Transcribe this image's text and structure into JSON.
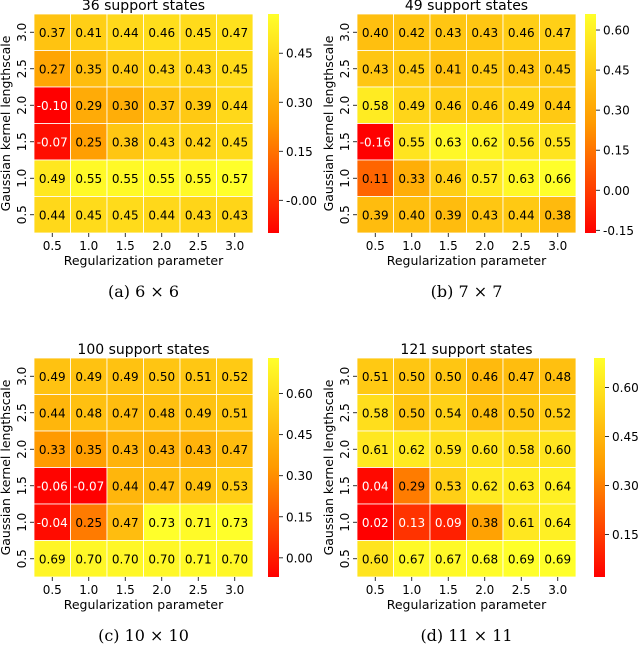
{
  "colors": {
    "low": "#ff0000",
    "mid": "#ff9a00",
    "high": "#ffff2a",
    "text_dark": "#000000",
    "text_light": "#ffffff"
  },
  "chart_data": [
    {
      "type": "heatmap",
      "title": "36 support states",
      "caption": "(a) 6 × 6",
      "xlabel": "Regularization parameter",
      "ylabel": "Gaussian kernel lengthscale",
      "x": [
        "0.5",
        "1.0",
        "1.5",
        "2.0",
        "2.5",
        "3.0"
      ],
      "y": [
        "3.0",
        "2.5",
        "2.0",
        "1.5",
        "1.0",
        "0.5"
      ],
      "values": [
        [
          0.37,
          0.41,
          0.44,
          0.46,
          0.45,
          0.47
        ],
        [
          0.27,
          0.35,
          0.4,
          0.43,
          0.43,
          0.45
        ],
        [
          -0.1,
          0.29,
          0.3,
          0.37,
          0.39,
          0.44
        ],
        [
          -0.07,
          0.25,
          0.38,
          0.43,
          0.42,
          0.45
        ],
        [
          0.49,
          0.55,
          0.55,
          0.55,
          0.55,
          0.57
        ],
        [
          0.44,
          0.45,
          0.45,
          0.44,
          0.43,
          0.43
        ]
      ],
      "labels": [
        [
          "0.37",
          "0.41",
          "0.44",
          "0.46",
          "0.45",
          "0.47"
        ],
        [
          "0.27",
          "0.35",
          "0.40",
          "0.43",
          "0.43",
          "0.45"
        ],
        [
          "-0.10",
          "0.29",
          "0.30",
          "0.37",
          "0.39",
          "0.44"
        ],
        [
          "-0.07",
          "0.25",
          "0.38",
          "0.43",
          "0.42",
          "0.45"
        ],
        [
          "0.49",
          "0.55",
          "0.55",
          "0.55",
          "0.55",
          "0.57"
        ],
        [
          "0.44",
          "0.45",
          "0.45",
          "0.44",
          "0.43",
          "0.43"
        ]
      ],
      "vmin": -0.1,
      "vmax": 0.57,
      "colorbar_ticks": [
        0.45,
        0.3,
        0.15,
        0.0
      ],
      "colorbar_labels": [
        "0.45",
        "0.30",
        "0.15",
        "-0.00"
      ]
    },
    {
      "type": "heatmap",
      "title": "49 support states",
      "caption": "(b) 7 × 7",
      "xlabel": "Regularization parameter",
      "ylabel": "Gaussian kernel lengthscale",
      "x": [
        "0.5",
        "1.0",
        "1.5",
        "2.0",
        "2.5",
        "3.0"
      ],
      "y": [
        "3.0",
        "2.5",
        "2.0",
        "1.5",
        "1.0",
        "0.5"
      ],
      "values": [
        [
          0.4,
          0.42,
          0.43,
          0.43,
          0.46,
          0.47
        ],
        [
          0.43,
          0.45,
          0.41,
          0.45,
          0.43,
          0.45
        ],
        [
          0.58,
          0.49,
          0.46,
          0.46,
          0.49,
          0.44
        ],
        [
          -0.16,
          0.55,
          0.63,
          0.62,
          0.56,
          0.55
        ],
        [
          0.11,
          0.33,
          0.46,
          0.57,
          0.63,
          0.66
        ],
        [
          0.39,
          0.4,
          0.39,
          0.43,
          0.44,
          0.38
        ]
      ],
      "labels": [
        [
          "0.40",
          "0.42",
          "0.43",
          "0.43",
          "0.46",
          "0.47"
        ],
        [
          "0.43",
          "0.45",
          "0.41",
          "0.45",
          "0.43",
          "0.45"
        ],
        [
          "0.58",
          "0.49",
          "0.46",
          "0.46",
          "0.49",
          "0.44"
        ],
        [
          "-0.16",
          "0.55",
          "0.63",
          "0.62",
          "0.56",
          "0.55"
        ],
        [
          "0.11",
          "0.33",
          "0.46",
          "0.57",
          "0.63",
          "0.66"
        ],
        [
          "0.39",
          "0.40",
          "0.39",
          "0.43",
          "0.44",
          "0.38"
        ]
      ],
      "vmin": -0.16,
      "vmax": 0.66,
      "colorbar_ticks": [
        0.6,
        0.45,
        0.3,
        0.15,
        0.0,
        -0.15
      ],
      "colorbar_labels": [
        "0.60",
        "0.45",
        "0.30",
        "0.15",
        "0.00",
        "-0.15"
      ]
    },
    {
      "type": "heatmap",
      "title": "100 support states",
      "caption": "(c) 10 × 10",
      "xlabel": "Regularization parameter",
      "ylabel": "Gaussian kernel lengthscale",
      "x": [
        "0.5",
        "1.0",
        "1.5",
        "2.0",
        "2.5",
        "3.0"
      ],
      "y": [
        "3.0",
        "2.5",
        "2.0",
        "1.5",
        "1.0",
        "0.5"
      ],
      "values": [
        [
          0.49,
          0.49,
          0.49,
          0.5,
          0.51,
          0.52
        ],
        [
          0.44,
          0.48,
          0.47,
          0.48,
          0.49,
          0.51
        ],
        [
          0.33,
          0.35,
          0.43,
          0.43,
          0.43,
          0.47
        ],
        [
          -0.06,
          -0.07,
          0.44,
          0.47,
          0.49,
          0.53
        ],
        [
          -0.04,
          0.25,
          0.47,
          0.73,
          0.71,
          0.73
        ],
        [
          0.69,
          0.7,
          0.7,
          0.7,
          0.71,
          0.7
        ]
      ],
      "labels": [
        [
          "0.49",
          "0.49",
          "0.49",
          "0.50",
          "0.51",
          "0.52"
        ],
        [
          "0.44",
          "0.48",
          "0.47",
          "0.48",
          "0.49",
          "0.51"
        ],
        [
          "0.33",
          "0.35",
          "0.43",
          "0.43",
          "0.43",
          "0.47"
        ],
        [
          "-0.06",
          "-0.07",
          "0.44",
          "0.47",
          "0.49",
          "0.53"
        ],
        [
          "-0.04",
          "0.25",
          "0.47",
          "0.73",
          "0.71",
          "0.73"
        ],
        [
          "0.69",
          "0.70",
          "0.70",
          "0.70",
          "0.71",
          "0.70"
        ]
      ],
      "vmin": -0.07,
      "vmax": 0.73,
      "colorbar_ticks": [
        0.6,
        0.45,
        0.3,
        0.15,
        0.0
      ],
      "colorbar_labels": [
        "0.60",
        "0.45",
        "0.30",
        "0.15",
        "0.00"
      ]
    },
    {
      "type": "heatmap",
      "title": "121 support states",
      "caption": "(d) 11 × 11",
      "xlabel": "Regularization parameter",
      "ylabel": "Gaussian kernel lengthscale",
      "x": [
        "0.5",
        "1.0",
        "1.5",
        "2.0",
        "2.5",
        "3.0"
      ],
      "y": [
        "3.0",
        "2.5",
        "2.0",
        "1.5",
        "1.0",
        "0.5"
      ],
      "values": [
        [
          0.51,
          0.5,
          0.5,
          0.46,
          0.47,
          0.48
        ],
        [
          0.58,
          0.5,
          0.54,
          0.48,
          0.5,
          0.52
        ],
        [
          0.61,
          0.62,
          0.59,
          0.6,
          0.58,
          0.6
        ],
        [
          0.04,
          0.29,
          0.53,
          0.62,
          0.63,
          0.64
        ],
        [
          0.02,
          0.13,
          0.09,
          0.38,
          0.61,
          0.64
        ],
        [
          0.6,
          0.67,
          0.67,
          0.68,
          0.69,
          0.69
        ]
      ],
      "labels": [
        [
          "0.51",
          "0.50",
          "0.50",
          "0.46",
          "0.47",
          "0.48"
        ],
        [
          "0.58",
          "0.50",
          "0.54",
          "0.48",
          "0.50",
          "0.52"
        ],
        [
          "0.61",
          "0.62",
          "0.59",
          "0.60",
          "0.58",
          "0.60"
        ],
        [
          "0.04",
          "0.29",
          "0.53",
          "0.62",
          "0.63",
          "0.64"
        ],
        [
          "0.02",
          "0.13",
          "0.09",
          "0.38",
          "0.61",
          "0.64"
        ],
        [
          "0.60",
          "0.67",
          "0.67",
          "0.68",
          "0.69",
          "0.69"
        ]
      ],
      "vmin": 0.02,
      "vmax": 0.69,
      "colorbar_ticks": [
        0.6,
        0.45,
        0.3,
        0.15
      ],
      "colorbar_labels": [
        "0.60",
        "0.45",
        "0.30",
        "0.15"
      ]
    }
  ]
}
